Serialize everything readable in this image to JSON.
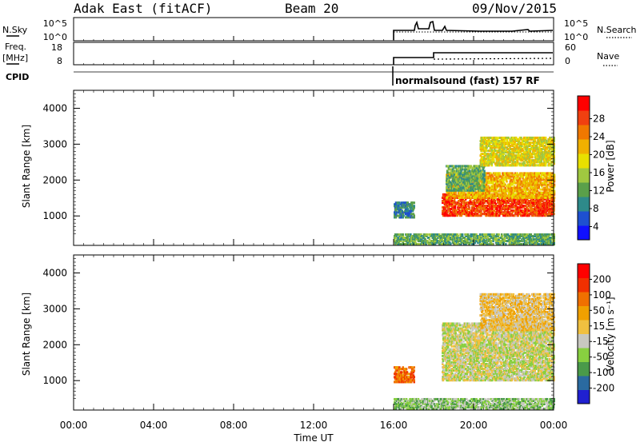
{
  "header": {
    "station": "Adak East (fitACF)",
    "beam": "Beam 20",
    "date": "09/Nov/2015"
  },
  "panels": {
    "nsky_label": "N.Sky",
    "nsearch_label": "N.Search",
    "freq_label_1": "Freq.",
    "freq_label_2": "[MHz]",
    "nave_label": "Nave",
    "cpid_label": "CPID",
    "cpid_text": "normalsound (fast) 157 RF",
    "nsky_ticks": [
      "10^5",
      "10^0"
    ],
    "nsearch_ticks": [
      "10^5",
      "10^0"
    ],
    "freq_ticks": [
      "18",
      "8"
    ],
    "nave_ticks": [
      "60",
      "0"
    ]
  },
  "colorbars": {
    "power": {
      "label": "Power [dB]",
      "ticks": [
        "28",
        "24",
        "20",
        "16",
        "12",
        "8",
        "4"
      ],
      "colors": [
        "#1010ff",
        "#1e50d0",
        "#2e8a8a",
        "#5aa04a",
        "#a0c840",
        "#e8e000",
        "#f0b000",
        "#f07800",
        "#f04010",
        "#ff0000"
      ]
    },
    "velocity": {
      "label": "Velocity [m s⁻¹]",
      "ticks": [
        "200",
        "100",
        "50",
        "15",
        "-15",
        "-50",
        "-100",
        "-200"
      ],
      "colors": [
        "#2020d0",
        "#2a6aa0",
        "#4a9a4a",
        "#88d040",
        "#c8c8c0",
        "#f0c040",
        "#f0a000",
        "#f07000",
        "#f03000",
        "#ff0000"
      ]
    }
  },
  "chart_data": {
    "type": "heatmap",
    "xlabel": "Time UT",
    "ylabel": "Slant Range [km]",
    "x_ticks": [
      "00:00",
      "04:00",
      "08:00",
      "12:00",
      "16:00",
      "20:00",
      "00:00"
    ],
    "y_ticks": [
      "4000",
      "3000",
      "2000",
      "1000"
    ],
    "xlim_hours": [
      0,
      24
    ],
    "ylim_km": [
      180,
      4500
    ],
    "data_start_hour": 16,
    "power_blobs": [
      {
        "t0": 16.0,
        "t1": 17.0,
        "r0": 950,
        "r1": 1400,
        "level": 2
      },
      {
        "t0": 18.4,
        "t1": 24.0,
        "r0": 1000,
        "r1": 1600,
        "level": 8
      },
      {
        "t0": 18.6,
        "t1": 24.0,
        "r0": 1500,
        "r1": 2200,
        "level": 6
      },
      {
        "t0": 18.6,
        "t1": 20.5,
        "r0": 1700,
        "r1": 2400,
        "level": 3
      },
      {
        "t0": 20.3,
        "t1": 24.0,
        "r0": 2400,
        "r1": 3200,
        "level": 5
      },
      {
        "t0": 16.0,
        "t1": 24.0,
        "r0": 200,
        "r1": 500,
        "level": 3
      }
    ],
    "velocity_blobs": [
      {
        "t0": 16.0,
        "t1": 17.0,
        "r0": 950,
        "r1": 1400,
        "level": 7
      },
      {
        "t0": 18.4,
        "t1": 24.0,
        "r0": 1000,
        "r1": 2600,
        "level": 4
      },
      {
        "t0": 20.3,
        "t1": 24.0,
        "r0": 2400,
        "r1": 3400,
        "level": 5
      },
      {
        "t0": 16.0,
        "t1": 24.0,
        "r0": 200,
        "r1": 500,
        "level": 3
      }
    ]
  }
}
